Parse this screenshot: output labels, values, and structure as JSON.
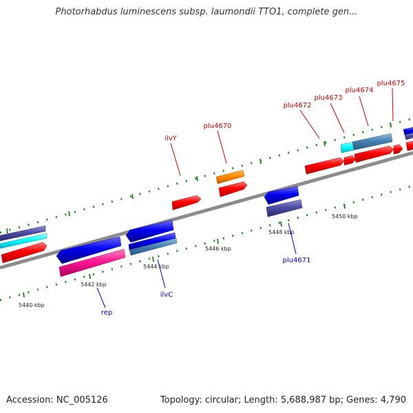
{
  "header": {
    "title": "Photorhabdus luminescens subsp. laumondii TTO1, complete gen..."
  },
  "map": {
    "colors": {
      "backbone": "#8c8c8c",
      "tick": "#228b22",
      "label_top": "#cc0000",
      "label_bottom": "#0000cc",
      "red": "#ff0000",
      "blue": "#0000ee",
      "slate": "#4d4da6",
      "steel": "#4682b4",
      "cyan": "#00ffff",
      "orange": "#ff8c00",
      "pink": "#ff1493"
    },
    "scale_labels": [
      "5440 kbp",
      "5442 kbp",
      "5444 kbp",
      "5446 kbp",
      "5448 kbp",
      "5450 kbp"
    ],
    "gene_labels": [
      {
        "name": "ilvY",
        "strand": "forward"
      },
      {
        "name": "plu4670",
        "strand": "forward"
      },
      {
        "name": "plu4672",
        "strand": "forward"
      },
      {
        "name": "plu4673",
        "strand": "forward"
      },
      {
        "name": "plu4674",
        "strand": "forward"
      },
      {
        "name": "plu4675",
        "strand": "forward"
      },
      {
        "name": "rep",
        "strand": "reverse"
      },
      {
        "name": "ilvC",
        "strand": "reverse"
      },
      {
        "name": "plu4671",
        "strand": "reverse"
      }
    ]
  },
  "footer": {
    "accession": "Accession: NC_005126",
    "summary": "Topology: circular; Length: 5,688,987 bp; Genes: 4,790"
  }
}
